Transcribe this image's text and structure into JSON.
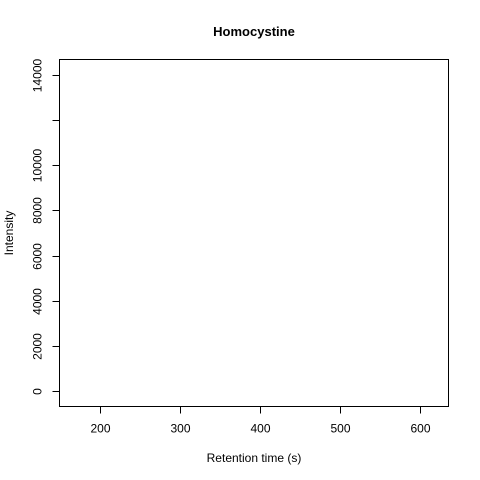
{
  "chart_data": {
    "type": "line",
    "title": "Homocystine",
    "xlabel": "Retention time (s)",
    "ylabel": "Intensity",
    "xlim": [
      150,
      635
    ],
    "ylim": [
      -700,
      14700
    ],
    "x_ticks": [
      200,
      300,
      400,
      500,
      600
    ],
    "x_tick_labels": [
      "200",
      "300",
      "400",
      "500",
      "600"
    ],
    "y_ticks": [
      0,
      2000,
      4000,
      6000,
      8000,
      10000,
      12000,
      14000
    ],
    "y_tick_labels": [
      "0",
      "2000",
      "4000",
      "6000",
      "8000",
      "10000",
      "",
      "14000"
    ],
    "series": [],
    "grid": false,
    "legend": "none"
  }
}
